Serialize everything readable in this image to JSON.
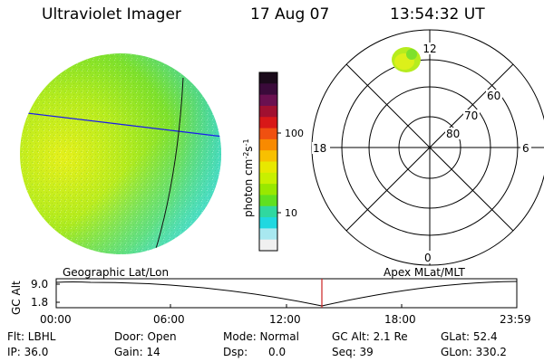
{
  "header": {
    "instrument": "Ultraviolet Imager",
    "date": "17 Aug 07",
    "time": "13:54:32 UT"
  },
  "colorbar": {
    "unit": "photon cm",
    "exp1": "-2",
    "mid": "s",
    "exp2": "-1",
    "ticks": [
      "100",
      "10"
    ],
    "colors": [
      "#1a0a1a",
      "#3a0a3a",
      "#6a1050",
      "#a01030",
      "#d81818",
      "#f05010",
      "#f88a00",
      "#f8c000",
      "#e8e800",
      "#c8f000",
      "#98e800",
      "#60e020",
      "#30d8a0",
      "#20d8e0",
      "#a8e8f0",
      "#f0f0f0"
    ]
  },
  "left_panel": {
    "caption": "Geographic Lat/Lon"
  },
  "right_panel": {
    "caption": "Apex MLat/MLT",
    "mlt_labels": [
      "12",
      "18",
      "6",
      "0"
    ],
    "lat_labels": [
      "60",
      "70",
      "80"
    ]
  },
  "timeline": {
    "ylabel": "GC Alt",
    "yticks": [
      "9.0",
      "1.8"
    ],
    "xticks": [
      "00:00",
      "06:00",
      "12:00",
      "18:00",
      "23:59"
    ],
    "marker_time": "13:54",
    "marker_color": "#cc2222"
  },
  "info": {
    "filter": "Flt: LBHL",
    "door": "Door: Open",
    "mode": "Mode: Normal",
    "gc_alt": "GC Alt: 2.1 Re",
    "glat": "GLat: 52.4",
    "ip": "IP: 36.0",
    "gain": "Gain: 14",
    "dsp": "Dsp:      0.0",
    "seq": "Seq: 39",
    "glon": "GLon: 330.2"
  }
}
